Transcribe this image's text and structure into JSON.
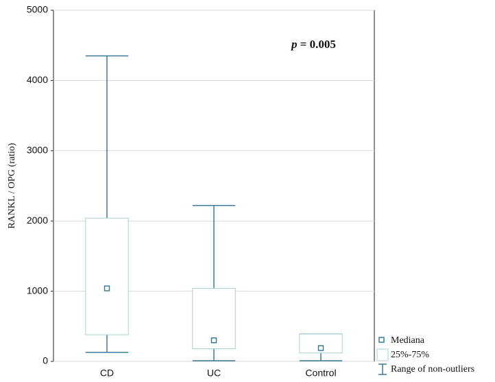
{
  "chart_data": {
    "type": "box",
    "ylabel": "RANKL / OPG (ratio)",
    "categories": [
      "CD",
      "UC",
      "Control"
    ],
    "min": [
      130,
      10,
      10
    ],
    "q1": [
      380,
      180,
      120
    ],
    "median": [
      1040,
      300,
      190
    ],
    "q3": [
      2040,
      1040,
      390
    ],
    "max": [
      4350,
      2220,
      390
    ],
    "ylim": [
      0,
      5000
    ],
    "yticks": [
      0,
      1000,
      2000,
      3000,
      4000,
      5000
    ],
    "grid": true,
    "annotation": {
      "italic": "p",
      "text": "= 0.005"
    },
    "legend": {
      "median": "Mediana",
      "box": "25%-75%",
      "whisker": "Range of non-outliers"
    },
    "color": "#3a7a96",
    "box_color": "#a8d0d8"
  }
}
